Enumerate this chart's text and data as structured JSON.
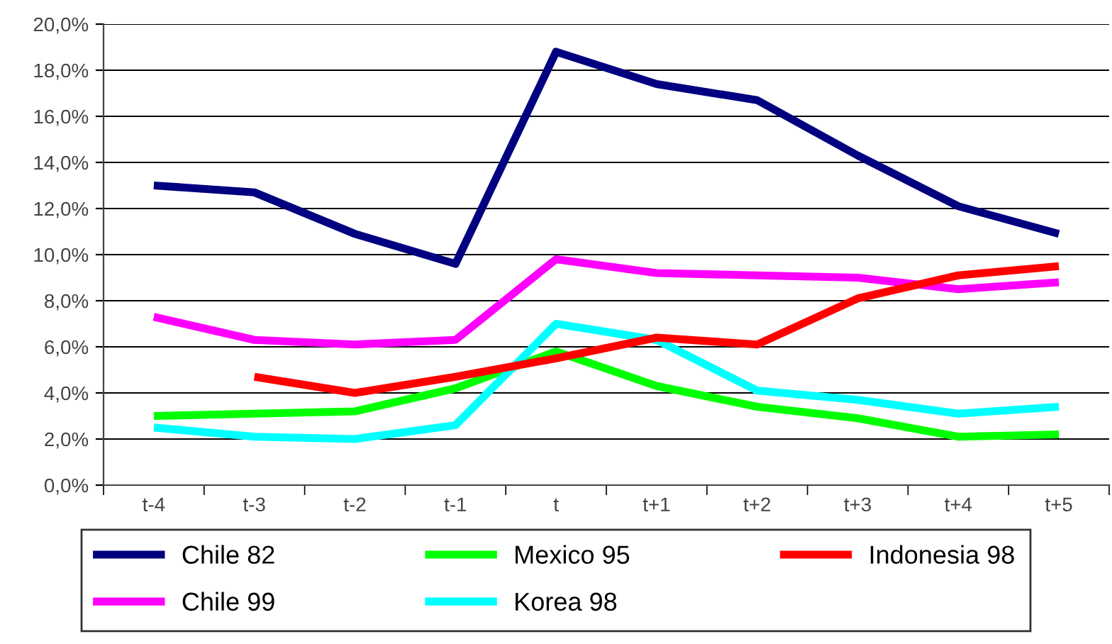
{
  "chart_data": {
    "type": "line",
    "categories": [
      "t-4",
      "t-3",
      "t-2",
      "t-1",
      "t",
      "t+1",
      "t+2",
      "t+3",
      "t+4",
      "t+5"
    ],
    "ylim": [
      0,
      20
    ],
    "yticks": [
      {
        "value": 0,
        "label": "0,0%"
      },
      {
        "value": 2,
        "label": "2,0%"
      },
      {
        "value": 4,
        "label": "4,0%"
      },
      {
        "value": 6,
        "label": "6,0%"
      },
      {
        "value": 8,
        "label": "8,0%"
      },
      {
        "value": 10,
        "label": "10,0%"
      },
      {
        "value": 12,
        "label": "12,0%"
      },
      {
        "value": 14,
        "label": "14,0%"
      },
      {
        "value": 16,
        "label": "16,0%"
      },
      {
        "value": 18,
        "label": "18,0%"
      },
      {
        "value": 20,
        "label": "20,0%"
      }
    ],
    "grid": "y",
    "legend": "bottom",
    "marker": "none",
    "line_style": "solid",
    "series": [
      {
        "name": "Chile 82",
        "color": "#000080",
        "values": [
          13.0,
          12.7,
          10.9,
          9.6,
          18.8,
          17.4,
          16.7,
          14.3,
          12.1,
          10.9
        ]
      },
      {
        "name": "Chile 99",
        "color": "#ff00ff",
        "values": [
          7.3,
          6.3,
          6.1,
          6.3,
          9.8,
          9.2,
          9.1,
          9.0,
          8.5,
          8.8
        ]
      },
      {
        "name": "Mexico 95",
        "color": "#00ff00",
        "values": [
          3.0,
          3.1,
          3.2,
          4.2,
          5.8,
          4.3,
          3.4,
          2.9,
          2.1,
          2.2
        ]
      },
      {
        "name": "Korea 98",
        "color": "#00ffff",
        "values": [
          2.5,
          2.1,
          2.0,
          2.6,
          7.0,
          6.3,
          4.1,
          3.7,
          3.1,
          3.4
        ]
      },
      {
        "name": "Indonesia 98",
        "color": "#ff0000",
        "values": [
          null,
          4.7,
          4.0,
          4.7,
          5.5,
          6.4,
          6.1,
          8.1,
          9.1,
          9.5
        ]
      }
    ]
  }
}
